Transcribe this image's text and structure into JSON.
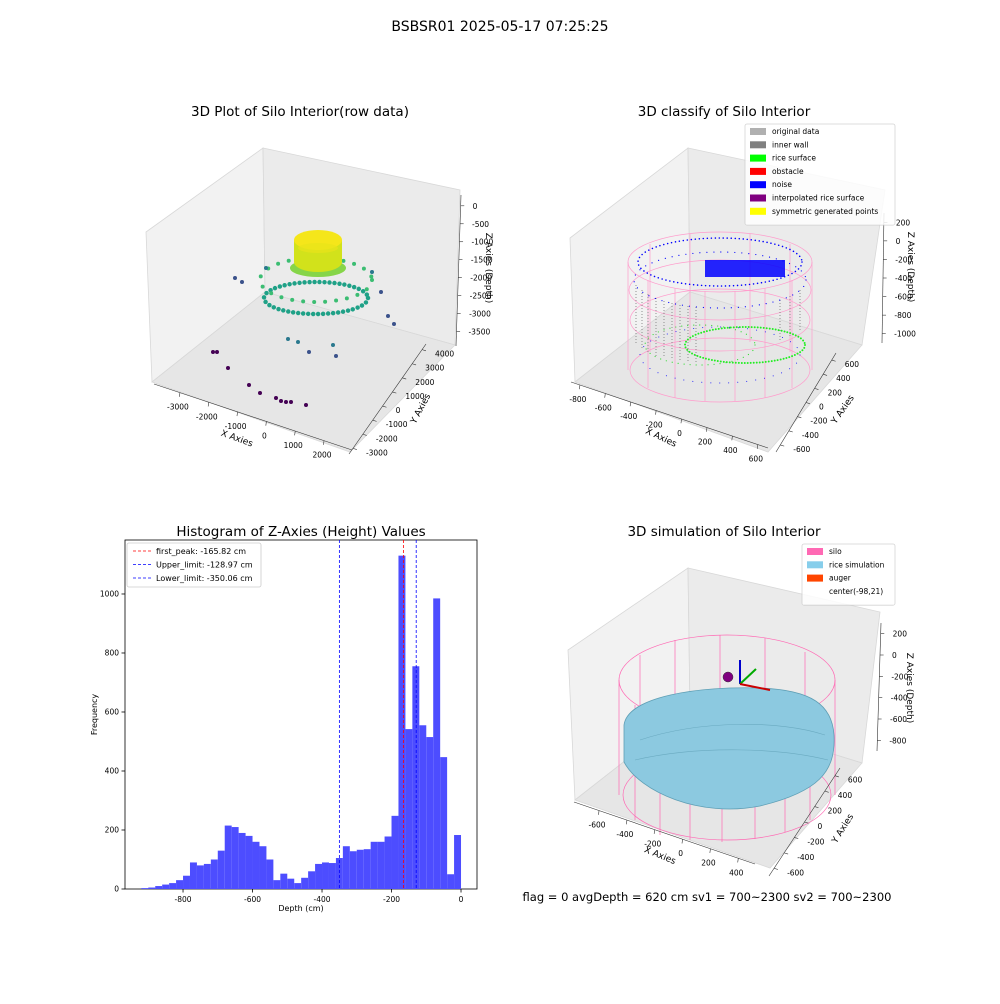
{
  "suptitle": "BSBSR01 2025-05-17 07:25:25",
  "chart_data": [
    {
      "type": "scatter3d",
      "title": "3D Plot of Silo Interior(row data)",
      "xlabel": "X Axies",
      "ylabel": "Y Axies",
      "zlabel": "Z Axies (Depth)",
      "xlim": [
        -3900,
        2970
      ],
      "xticks": [
        -3000,
        -2000,
        -1000,
        0,
        1000,
        2000
      ],
      "ylim": [
        -3400,
        4400
      ],
      "yticks": [
        -3000,
        -2000,
        -1000,
        0,
        1000,
        2000,
        3000,
        4000
      ],
      "zlim": [
        -3900,
        300
      ],
      "zticks": [
        0,
        -500,
        -1000,
        -1500,
        -2000,
        -2500,
        -3000,
        -3500
      ]
    },
    {
      "type": "scatter3d",
      "title": "3D classify of Silo Interior",
      "xlabel": "X Axies",
      "ylabel": "Y Axies",
      "zlabel": "Z Axies (Depth)",
      "xlim": [
        -870,
        680
      ],
      "xticks": [
        -800,
        -600,
        -400,
        -200,
        0,
        200,
        400,
        600
      ],
      "ylim": [
        -700,
        700
      ],
      "yticks": [
        -600,
        -400,
        -200,
        0,
        200,
        400,
        600
      ],
      "zlim": [
        -1100,
        300
      ],
      "zticks": [
        200,
        0,
        -200,
        -400,
        -600,
        -800,
        -1000
      ],
      "legend": "upper right",
      "legend_entries": [
        {
          "name": "original data",
          "color": "#b0b0b0"
        },
        {
          "name": "inner wall",
          "color": "#808080"
        },
        {
          "name": "rice surface",
          "color": "#00ff00"
        },
        {
          "name": "obstacle",
          "color": "#ff0000"
        },
        {
          "name": "noise",
          "color": "#0000ff"
        },
        {
          "name": "interpolated rice surface",
          "color": "#800080"
        },
        {
          "name": "symmetric generated points",
          "color": "#ffff00"
        }
      ]
    },
    {
      "type": "histogram",
      "title": "Histogram of Z-Axies (Height) Values",
      "xlabel": "Depth (cm)",
      "ylabel": "Frequency",
      "color": "#4d4dff",
      "xlim": [
        -967,
        46
      ],
      "xticks": [
        -800,
        -600,
        -400,
        -200,
        0
      ],
      "ylim": [
        0,
        1183
      ],
      "yticks": [
        0,
        200,
        400,
        600,
        800,
        1000
      ],
      "bins": [
        -920,
        -900,
        -880,
        -860,
        -840,
        -820,
        -800,
        -780,
        -760,
        -740,
        -720,
        -700,
        -680,
        -660,
        -640,
        -620,
        -600,
        -580,
        -560,
        -540,
        -520,
        -500,
        -480,
        -460,
        -440,
        -420,
        -400,
        -380,
        -360,
        -340,
        -320,
        -300,
        -280,
        -260,
        -240,
        -220,
        -200,
        -180,
        -160,
        -140,
        -120,
        -100,
        -80,
        -60,
        -40,
        -20,
        0
      ],
      "counts": [
        3,
        5,
        10,
        15,
        20,
        30,
        45,
        90,
        80,
        85,
        100,
        130,
        215,
        210,
        190,
        180,
        160,
        145,
        100,
        30,
        52,
        35,
        20,
        38,
        60,
        85,
        90,
        88,
        105,
        145,
        128,
        133,
        135,
        160,
        160,
        178,
        248,
        1130,
        542,
        755,
        555,
        515,
        985,
        447,
        50,
        183
      ],
      "legend": "upper left",
      "vlines": [
        {
          "label": "first_peak: -165.82 cm",
          "value": -165.82,
          "color": "#ff0000"
        },
        {
          "label": "Upper_limit: -128.97 cm",
          "value": -128.97,
          "color": "#0000ff"
        },
        {
          "label": "Lower_limit: -350.06 cm",
          "value": -350.06,
          "color": "#0000ff"
        }
      ]
    },
    {
      "type": "surface3d",
      "title": "3D simulation of Silo Interior",
      "xlabel": "X Axies",
      "ylabel": "Y Axies",
      "zlabel": "Z Axies (Depth)",
      "xlim": [
        -780,
        520
      ],
      "xticks": [
        -600,
        -400,
        -200,
        0,
        200,
        400
      ],
      "ylim": [
        -700,
        700
      ],
      "yticks": [
        -600,
        -400,
        -200,
        0,
        200,
        400,
        600
      ],
      "zlim": [
        -900,
        300
      ],
      "zticks": [
        200,
        0,
        -200,
        -400,
        -600,
        -800
      ],
      "legend": "upper right",
      "legend_entries": [
        {
          "name": "silo",
          "color": "#ff69b4"
        },
        {
          "name": "rice simulation",
          "color": "#87ceeb"
        },
        {
          "name": "auger",
          "color": "#ff4500"
        },
        {
          "name": "center(-98,21)"
        }
      ],
      "annotation": "flag = 0     avgDepth = 620 cm  sv1 = 700~2300  sv2 = 700~2300"
    }
  ]
}
